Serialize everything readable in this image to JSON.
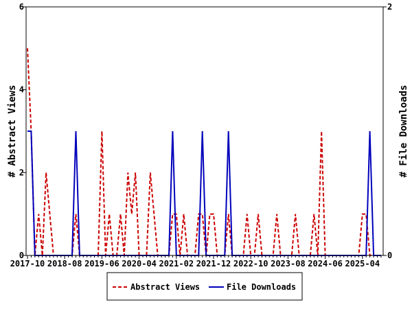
{
  "chart_data": {
    "type": "line",
    "title": "",
    "xlabel": "",
    "ylabel": "# Abstract Views",
    "y2label": "# File Downloads",
    "ylim": [
      0,
      6
    ],
    "y2lim": [
      0,
      2
    ],
    "yticks": [
      "0",
      "2",
      "4",
      "6"
    ],
    "y2ticks": [
      "0",
      "2"
    ],
    "x_start": "2017-10",
    "months": 96,
    "xtick_labels": [
      "2017-10",
      "2018-08",
      "2019-06",
      "2020-04",
      "2021-02",
      "2021-12",
      "2022-10",
      "2023-08",
      "2024-06",
      "2025-04"
    ],
    "legend_placement": "bottom-center",
    "series": [
      {
        "name": "Abstract Views",
        "axis": "left",
        "color": "#cc0000",
        "style": "dashed",
        "values": [
          5,
          3,
          0,
          1,
          0,
          2,
          1,
          0,
          0,
          0,
          0,
          0,
          0,
          1,
          0,
          0,
          0,
          0,
          0,
          0,
          3,
          0,
          1,
          0,
          0,
          1,
          0,
          2,
          1,
          2,
          0,
          0,
          0,
          2,
          1,
          0,
          0,
          0,
          0,
          1,
          1,
          0,
          1,
          0,
          0,
          0,
          1,
          1,
          0,
          1,
          1,
          0,
          0,
          0,
          1,
          0,
          0,
          0,
          0,
          1,
          0,
          0,
          1,
          0,
          0,
          0,
          0,
          1,
          0,
          0,
          0,
          0,
          1,
          0,
          0,
          0,
          0,
          1,
          0,
          3,
          0,
          0,
          0,
          0,
          0,
          0,
          0,
          0,
          0,
          0,
          1,
          1,
          0,
          0,
          0,
          0
        ]
      },
      {
        "name": "File Downloads",
        "axis": "right",
        "color": "#0000bb",
        "style": "solid",
        "values": [
          1,
          1,
          0,
          0,
          0,
          0,
          0,
          0,
          0,
          0,
          0,
          0,
          0,
          1,
          0,
          0,
          0,
          0,
          0,
          0,
          0,
          0,
          0,
          0,
          0,
          0,
          0,
          0,
          0,
          0,
          0,
          0,
          0,
          0,
          0,
          0,
          0,
          0,
          0,
          1,
          0,
          0,
          0,
          0,
          0,
          0,
          0,
          1,
          0,
          0,
          0,
          0,
          0,
          0,
          1,
          0,
          0,
          0,
          0,
          0,
          0,
          0,
          0,
          0,
          0,
          0,
          0,
          0,
          0,
          0,
          0,
          0,
          0,
          0,
          0,
          0,
          0,
          0,
          0,
          0,
          0,
          0,
          0,
          0,
          0,
          0,
          0,
          0,
          0,
          0,
          0,
          0,
          1,
          0,
          0,
          0
        ]
      }
    ]
  }
}
